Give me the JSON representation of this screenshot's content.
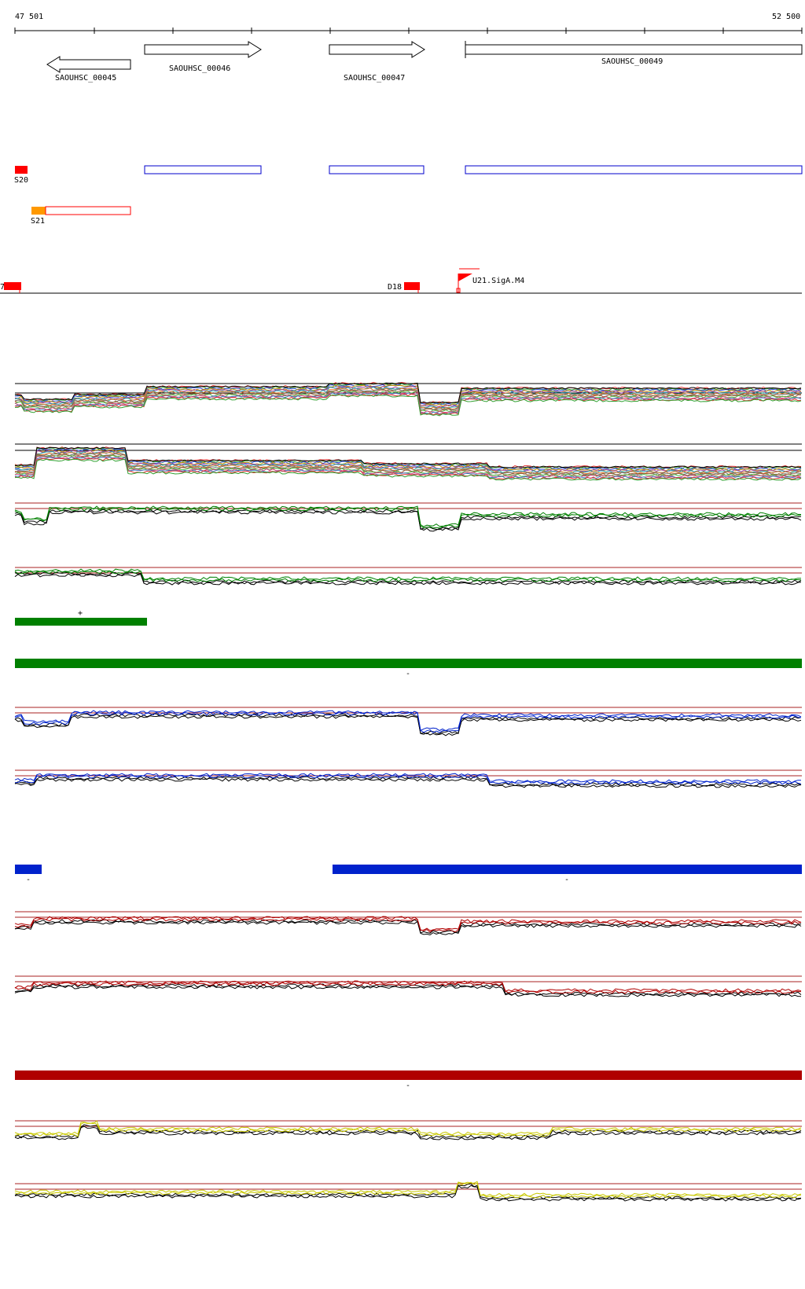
{
  "ruler": {
    "start_label": "47 501",
    "end_label": "52 500"
  },
  "genes": [
    {
      "id": "SAOUHSC_00045",
      "strand": "-"
    },
    {
      "id": "SAOUHSC_00046",
      "strand": "+"
    },
    {
      "id": "SAOUHSC_00047",
      "strand": "+"
    },
    {
      "id": "SAOUHSC_00049",
      "strand": "+"
    }
  ],
  "features": {
    "s20": "S20",
    "s21": "S21",
    "d17_partial": "7",
    "d18": "D18",
    "u21": "U21.SigA.M4"
  },
  "segment_signs": {
    "green_plus": "+",
    "green_minus": "-",
    "blue_left_minus": "-",
    "blue_right_minus": "-",
    "red_minus": "-"
  },
  "colors": {
    "gene_outline": "#0000cc",
    "feature_red": "#ff0000",
    "feature_orange": "#ff9900",
    "green": "#008000",
    "blue": "#0022cc",
    "dark_red": "#b00000",
    "yellow": "#c8c800",
    "reference_line": "#aa2222"
  },
  "icons": {
    "flag": "promoter-flag-icon",
    "arrow": "gene-arrow-icon"
  }
}
